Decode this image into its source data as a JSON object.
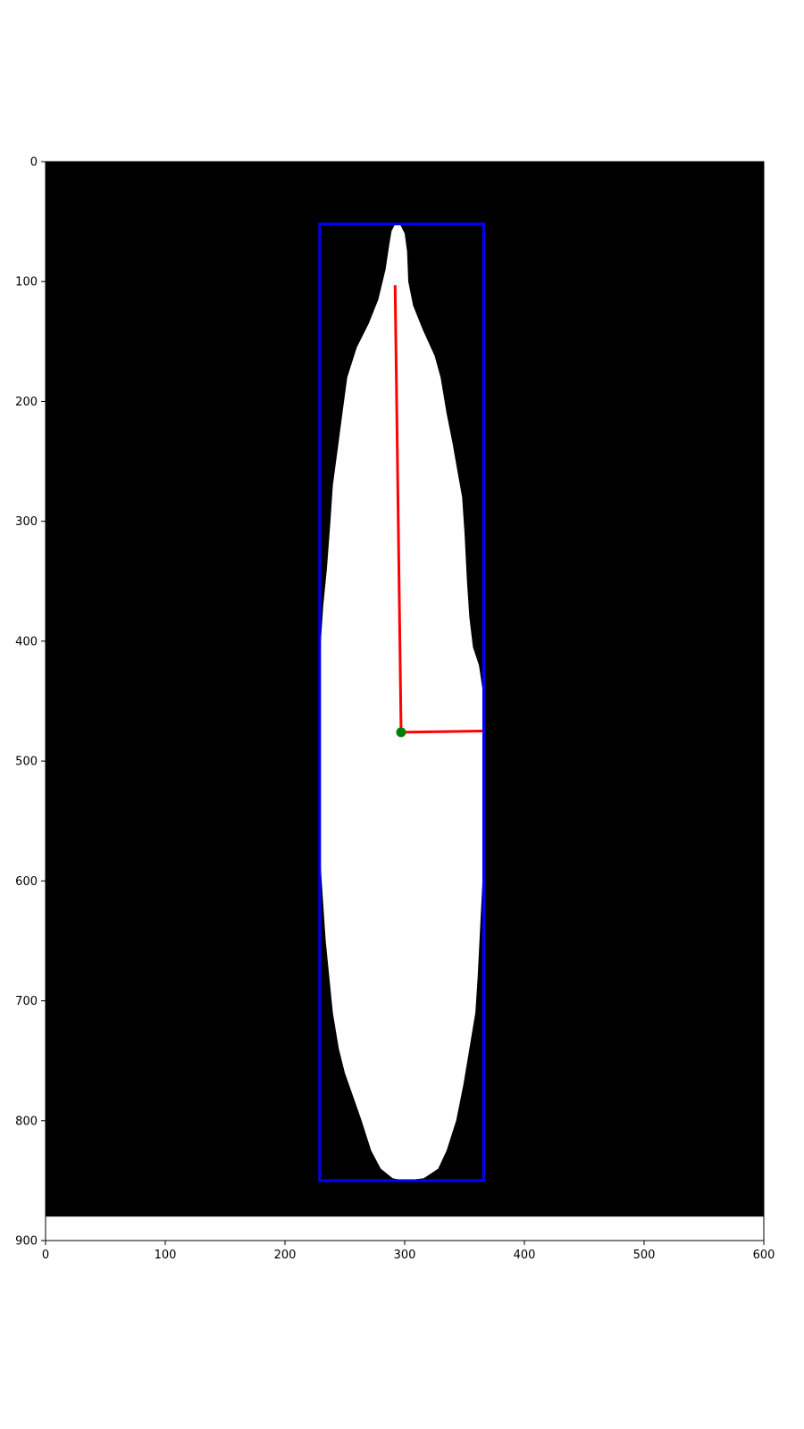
{
  "chart_data": {
    "type": "image",
    "title": "",
    "xlabel": "",
    "ylabel": "",
    "xlim": [
      0,
      600
    ],
    "ylim": [
      900,
      0
    ],
    "image_extent_y": 880,
    "y_axis_inverted": true,
    "x_ticks": [
      0,
      100,
      200,
      300,
      400,
      500,
      600
    ],
    "y_ticks": [
      0,
      100,
      200,
      300,
      400,
      500,
      600,
      700,
      800,
      900
    ],
    "background_color": "#000000",
    "shape_color": "#ffffff",
    "shape_outline": [
      [
        292,
        52
      ],
      [
        296,
        52
      ],
      [
        300,
        60
      ],
      [
        302,
        75
      ],
      [
        303,
        100
      ],
      [
        307,
        120
      ],
      [
        315,
        140
      ],
      [
        325,
        162
      ],
      [
        330,
        180
      ],
      [
        335,
        210
      ],
      [
        340,
        235
      ],
      [
        344,
        258
      ],
      [
        348,
        280
      ],
      [
        350,
        310
      ],
      [
        352,
        350
      ],
      [
        354,
        380
      ],
      [
        357,
        405
      ],
      [
        362,
        420
      ],
      [
        365,
        440
      ],
      [
        366,
        480
      ],
      [
        366,
        520
      ],
      [
        366,
        560
      ],
      [
        365,
        600
      ],
      [
        363,
        640
      ],
      [
        361,
        680
      ],
      [
        359,
        710
      ],
      [
        354,
        740
      ],
      [
        349,
        770
      ],
      [
        343,
        800
      ],
      [
        335,
        825
      ],
      [
        328,
        840
      ],
      [
        316,
        848
      ],
      [
        300,
        850
      ],
      [
        290,
        848
      ],
      [
        280,
        840
      ],
      [
        272,
        825
      ],
      [
        264,
        800
      ],
      [
        257,
        780
      ],
      [
        250,
        760
      ],
      [
        245,
        740
      ],
      [
        240,
        710
      ],
      [
        237,
        680
      ],
      [
        234,
        650
      ],
      [
        232,
        620
      ],
      [
        230,
        590
      ],
      [
        229,
        560
      ],
      [
        229,
        520
      ],
      [
        229,
        480
      ],
      [
        229,
        440
      ],
      [
        230,
        400
      ],
      [
        232,
        370
      ],
      [
        235,
        340
      ],
      [
        238,
        300
      ],
      [
        240,
        270
      ],
      [
        244,
        240
      ],
      [
        248,
        210
      ],
      [
        252,
        180
      ],
      [
        260,
        155
      ],
      [
        270,
        135
      ],
      [
        278,
        115
      ],
      [
        284,
        90
      ],
      [
        287,
        70
      ],
      [
        289,
        58
      ]
    ],
    "bounding_box": {
      "x_min": 229,
      "x_max": 366,
      "y_min": 52,
      "y_max": 850,
      "color": "#0000ff"
    },
    "axis_lines": [
      {
        "from": [
          297,
          476
        ],
        "to": [
          292,
          103
        ],
        "color": "#ff0000"
      },
      {
        "from": [
          297,
          476
        ],
        "to": [
          365,
          475
        ],
        "color": "#ff0000"
      }
    ],
    "centroid": {
      "x": 297,
      "y": 476,
      "color": "#008000"
    }
  }
}
